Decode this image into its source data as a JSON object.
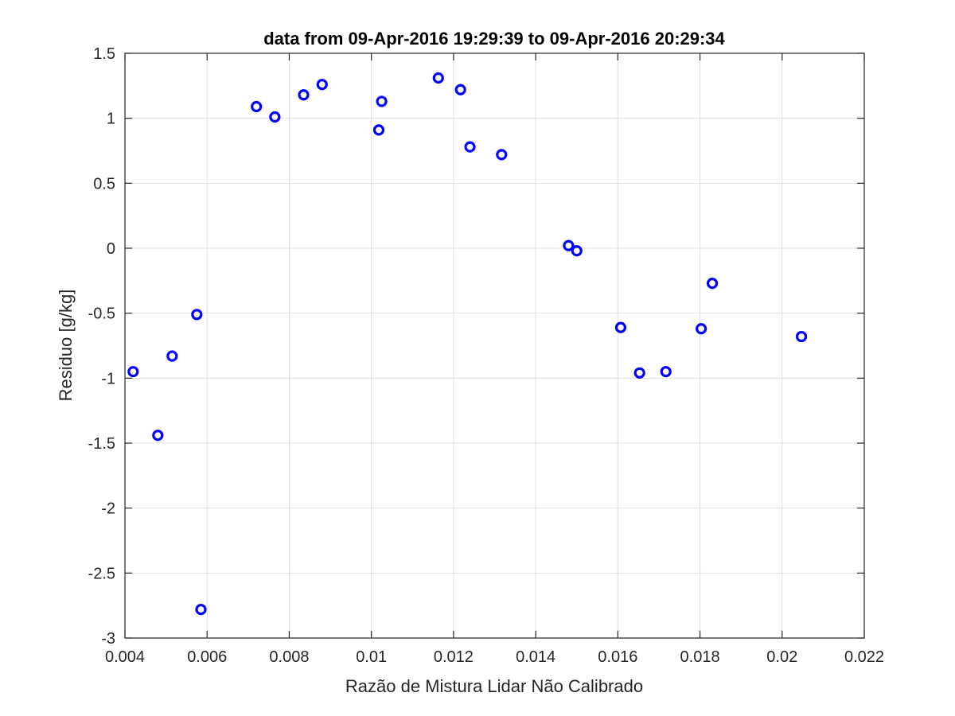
{
  "chart_data": {
    "type": "scatter",
    "title": "data from 09-Apr-2016 19:29:39 to 09-Apr-2016 20:29:34",
    "xlabel": "Razão de Mistura Lidar Não Calibrado",
    "ylabel": "Residuo [g/kg]",
    "xlim": [
      0.004,
      0.022
    ],
    "ylim": [
      -3,
      1.5
    ],
    "x_ticks": [
      0.004,
      0.006,
      0.008,
      0.01,
      0.012,
      0.014,
      0.016,
      0.018,
      0.02,
      0.022
    ],
    "x_tick_labels": [
      "0.004",
      "0.006",
      "0.008",
      "0.01",
      "0.012",
      "0.014",
      "0.016",
      "0.018",
      "0.02",
      "0.022"
    ],
    "y_ticks": [
      1.5,
      1,
      0.5,
      0,
      -0.5,
      -1,
      -1.5,
      -2,
      -2.5,
      -3
    ],
    "y_tick_labels": [
      "1.5",
      "1",
      "0.5",
      "0",
      "-0.5",
      "-1",
      "-1.5",
      "-2",
      "-2.5",
      "-3"
    ],
    "grid": true,
    "legend": "none",
    "marker": "circle",
    "color": "#0000ff",
    "points": [
      {
        "x": 0.0042,
        "y": -0.95
      },
      {
        "x": 0.0048,
        "y": -1.44
      },
      {
        "x": 0.00515,
        "y": -0.83
      },
      {
        "x": 0.00575,
        "y": -0.51
      },
      {
        "x": 0.00585,
        "y": -2.78
      },
      {
        "x": 0.0072,
        "y": 1.09
      },
      {
        "x": 0.00765,
        "y": 1.01
      },
      {
        "x": 0.00835,
        "y": 1.18
      },
      {
        "x": 0.0088,
        "y": 1.26
      },
      {
        "x": 0.01018,
        "y": 0.91
      },
      {
        "x": 0.01025,
        "y": 1.13
      },
      {
        "x": 0.01163,
        "y": 1.31
      },
      {
        "x": 0.01217,
        "y": 1.22
      },
      {
        "x": 0.0124,
        "y": 0.78
      },
      {
        "x": 0.01317,
        "y": 0.72
      },
      {
        "x": 0.0148,
        "y": 0.02
      },
      {
        "x": 0.015,
        "y": -0.02
      },
      {
        "x": 0.01607,
        "y": -0.61
      },
      {
        "x": 0.01653,
        "y": -0.96
      },
      {
        "x": 0.01717,
        "y": -0.95
      },
      {
        "x": 0.01803,
        "y": -0.62
      },
      {
        "x": 0.0183,
        "y": -0.27
      },
      {
        "x": 0.02047,
        "y": -0.68
      }
    ]
  }
}
